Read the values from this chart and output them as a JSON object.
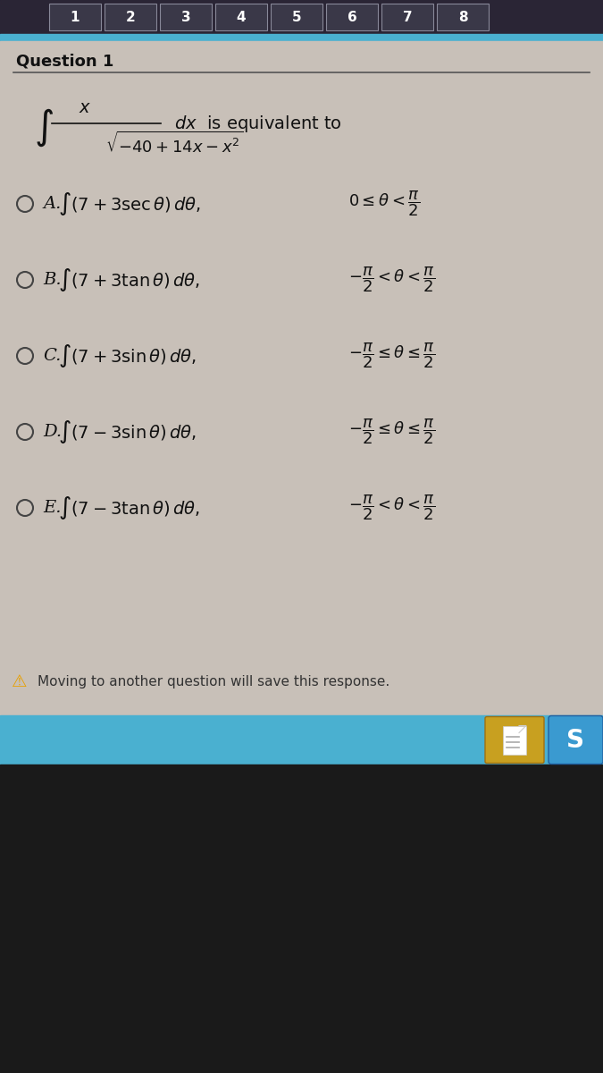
{
  "title": "Question 1",
  "bg_color": "#c8c0b8",
  "header_bg": "#2a2a35",
  "content_bg": "#c8c0b8",
  "question_text": "Question 1",
  "options": [
    {
      "label": "A.",
      "integral": "$\\int(7+3\\sec\\theta)\\,d\\theta,$",
      "condition": "$0 \\leq \\theta < \\dfrac{\\pi}{2}$"
    },
    {
      "label": "B.",
      "integral": "$\\int(7+3\\tan\\theta)\\,d\\theta,$",
      "condition": "$-\\dfrac{\\pi}{2} < \\theta < \\dfrac{\\pi}{2}$"
    },
    {
      "label": "C.",
      "integral": "$\\int(7+3\\sin\\theta)\\,d\\theta,$",
      "condition": "$-\\dfrac{\\pi}{2} \\leq \\theta \\leq \\dfrac{\\pi}{2}$"
    },
    {
      "label": "D.",
      "integral": "$\\int(7-3\\sin\\theta)\\,d\\theta,$",
      "condition": "$-\\dfrac{\\pi}{2} \\leq \\theta \\leq \\dfrac{\\pi}{2}$"
    },
    {
      "label": "E.",
      "integral": "$\\int(7-3\\tan\\theta)\\,d\\theta,$",
      "condition": "$-\\dfrac{\\pi}{2} < \\theta < \\dfrac{\\pi}{2}$"
    }
  ],
  "footer_text": "Moving to another question will save this response.",
  "tab_labels": [
    "1",
    "2",
    "3",
    "4",
    "5",
    "6",
    "7",
    "8"
  ],
  "warning_color": "#e8a000",
  "cyan_bar_color": "#4ab0d0",
  "page_btn_bg": "#c8a020",
  "s_btn_bg": "#3a9ad0",
  "dark_bottom": "#1a1a1a",
  "tab_bg": "#2a2535",
  "tab_active_bg": "#ffffff",
  "tab_inactive_bg": "#3a3540"
}
